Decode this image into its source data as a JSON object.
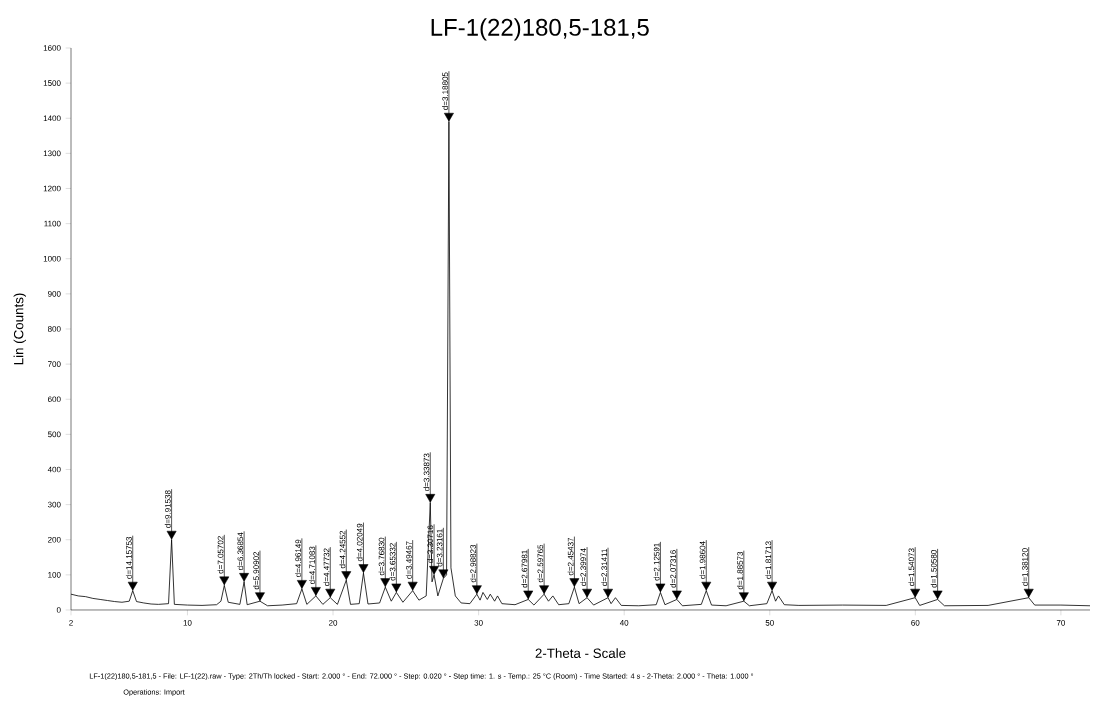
{
  "chart_data": {
    "type": "line",
    "title": "LF-1(22)180,5-181,5",
    "xlabel": "2-Theta - Scale",
    "ylabel": "Lin (Counts)",
    "color": "#000000",
    "x": [
      2,
      2.5,
      3,
      3.5,
      4,
      4.5,
      5,
      5.5,
      6,
      6.24,
      6.5,
      7,
      7.5,
      8,
      8.7,
      8.91,
      9.1,
      10,
      11,
      12,
      12.3,
      12.53,
      12.8,
      13.6,
      13.89,
      14.1,
      14.98,
      15.5,
      16.5,
      17.5,
      17.86,
      18.2,
      18.82,
      19.3,
      19.81,
      20.3,
      20.91,
      21.2,
      21.8,
      22.09,
      22.4,
      23.2,
      23.59,
      24,
      24.35,
      24.8,
      25.47,
      25.9,
      26.4,
      26.68,
      26.8,
      26.94,
      27.2,
      27.58,
      27.8,
      27.96,
      28.1,
      28.4,
      28.8,
      29.4,
      29.88,
      30.1,
      30.3,
      30.6,
      30.8,
      31.1,
      31.3,
      31.6,
      32.5,
      33.41,
      33.8,
      34.5,
      34.8,
      35.1,
      35.5,
      36.2,
      36.58,
      36.9,
      37.45,
      37.9,
      38.89,
      39.1,
      39.4,
      39.8,
      41,
      42.2,
      42.49,
      42.8,
      43.62,
      44,
      45.3,
      45.64,
      46,
      47,
      48.22,
      48.6,
      49.8,
      50.16,
      50.4,
      50.6,
      51,
      52,
      55,
      58,
      59.99,
      60.3,
      61.53,
      62,
      65,
      67.79,
      68.2,
      70,
      72
    ],
    "values": [
      45,
      40,
      38,
      33,
      30,
      27,
      24,
      22,
      25,
      55,
      24,
      20,
      17,
      16,
      18,
      200,
      16,
      14,
      13,
      15,
      25,
      70,
      22,
      16,
      80,
      15,
      25,
      12,
      14,
      18,
      60,
      16,
      40,
      16,
      35,
      16,
      85,
      16,
      18,
      105,
      17,
      20,
      65,
      25,
      50,
      22,
      55,
      28,
      40,
      305,
      80,
      100,
      40,
      90,
      100,
      1390,
      120,
      40,
      20,
      18,
      45,
      28,
      50,
      30,
      45,
      25,
      40,
      18,
      15,
      30,
      14,
      45,
      25,
      40,
      15,
      18,
      65,
      18,
      35,
      14,
      35,
      18,
      35,
      13,
      12,
      15,
      50,
      15,
      30,
      12,
      16,
      55,
      14,
      12,
      25,
      12,
      18,
      55,
      25,
      40,
      15,
      13,
      14,
      13,
      35,
      13,
      30,
      12,
      13,
      35,
      14,
      14,
      12
    ],
    "xlim": [
      2,
      72
    ],
    "ylim": [
      0,
      1600
    ],
    "xticks": [
      2,
      10,
      20,
      30,
      40,
      50,
      60,
      70
    ],
    "yticks": [
      0,
      100,
      200,
      300,
      400,
      500,
      600,
      700,
      800,
      900,
      1000,
      1100,
      1200,
      1300,
      1400,
      1500,
      1600
    ],
    "annotations": [
      {
        "text": "d=14.15753",
        "x": 6.24,
        "y": 55
      },
      {
        "text": "d=9.91538",
        "x": 8.91,
        "y": 200
      },
      {
        "text": "d=7.05702",
        "x": 12.53,
        "y": 70
      },
      {
        "text": "d=6.36854",
        "x": 13.89,
        "y": 80
      },
      {
        "text": "d=5.90902",
        "x": 14.98,
        "y": 25
      },
      {
        "text": "d=4.96149",
        "x": 17.86,
        "y": 60
      },
      {
        "text": "d=4.71083",
        "x": 18.82,
        "y": 40
      },
      {
        "text": "d=4.47732",
        "x": 19.81,
        "y": 35
      },
      {
        "text": "d=4.24552",
        "x": 20.91,
        "y": 85
      },
      {
        "text": "d=4.02049",
        "x": 22.09,
        "y": 105
      },
      {
        "text": "d=3.76830",
        "x": 23.59,
        "y": 65
      },
      {
        "text": "d=3.65332",
        "x": 24.35,
        "y": 50
      },
      {
        "text": "d=3.49467",
        "x": 25.47,
        "y": 55
      },
      {
        "text": "d=3.33873",
        "x": 26.68,
        "y": 305
      },
      {
        "text": "d=3.30716",
        "x": 26.94,
        "y": 100
      },
      {
        "text": "d=3.23161",
        "x": 27.58,
        "y": 90
      },
      {
        "text": "d=3.18805",
        "x": 27.96,
        "y": 1390
      },
      {
        "text": "d=2.98823",
        "x": 29.88,
        "y": 45
      },
      {
        "text": "d=2.67981",
        "x": 33.41,
        "y": 30
      },
      {
        "text": "d=2.59765",
        "x": 34.5,
        "y": 45
      },
      {
        "text": "d=2.45437",
        "x": 36.58,
        "y": 65
      },
      {
        "text": "d=2.39974",
        "x": 37.45,
        "y": 35
      },
      {
        "text": "d=2.31411",
        "x": 38.89,
        "y": 35
      },
      {
        "text": "d=2.12591",
        "x": 42.49,
        "y": 50
      },
      {
        "text": "d=2.07316",
        "x": 43.62,
        "y": 30
      },
      {
        "text": "d=1.98604",
        "x": 45.64,
        "y": 55
      },
      {
        "text": "d=1.88573",
        "x": 48.22,
        "y": 25
      },
      {
        "text": "d=1.81713",
        "x": 50.16,
        "y": 55
      },
      {
        "text": "d=1.54073",
        "x": 59.99,
        "y": 35
      },
      {
        "text": "d=1.50580",
        "x": 61.53,
        "y": 30
      },
      {
        "text": "d=1.38120",
        "x": 67.79,
        "y": 35
      },
      "LF-1(22)180,5-181,5 - File: LF-1(22).raw - Type: 2Th/Th locked - Start: 2.000 ° - End: 72.000 ° - Step: 0.020 ° - Step time: 1. s - Temp.: 25 °C (Room) - Time Started: 4 s - 2-Theta: 2.000 ° - Theta: 1.000 °",
      "Operations: Import"
    ]
  }
}
